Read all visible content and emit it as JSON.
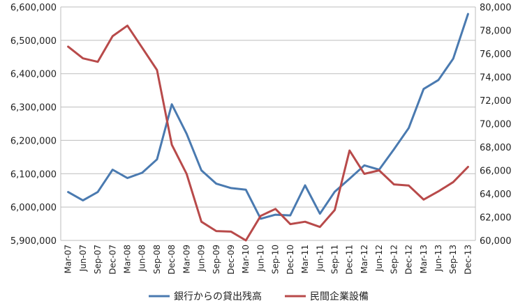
{
  "chart_data": {
    "type": "line",
    "title": "",
    "xlabel": "",
    "ylabel": "",
    "y2label": "",
    "grid": "horizontal",
    "legend_position": "bottom",
    "categories": [
      "Mar-07",
      "Jun-07",
      "Sep-07",
      "Dec-07",
      "Mar-08",
      "Jun-08",
      "Sep-08",
      "Dec-08",
      "Mar-09",
      "Jun-09",
      "Sep-09",
      "Dec-09",
      "Mar-10",
      "Jun-10",
      "Sep-10",
      "Dec-10",
      "Mar-11",
      "Jun-11",
      "Sep-11",
      "Dec-11",
      "Mar-12",
      "Jun-12",
      "Sep-12",
      "Dec-12",
      "Mar-13",
      "Jun-13",
      "Sep-13",
      "Dec-13"
    ],
    "y_left": {
      "range": [
        5900000,
        6600000
      ],
      "ticks": [
        5900000,
        6000000,
        6100000,
        6200000,
        6300000,
        6400000,
        6500000,
        6600000
      ],
      "tick_labels": [
        "5,900,000",
        "6,000,000",
        "6,100,000",
        "6,200,000",
        "6,300,000",
        "6,400,000",
        "6,500,000",
        "6,600,000"
      ]
    },
    "y_right": {
      "range": [
        60000,
        80000
      ],
      "ticks": [
        60000,
        62000,
        64000,
        66000,
        68000,
        70000,
        72000,
        74000,
        76000,
        78000,
        80000
      ],
      "tick_labels": [
        "60,000",
        "62,000",
        "64,000",
        "66,000",
        "68,000",
        "70,000",
        "72,000",
        "74,000",
        "76,000",
        "78,000",
        "80,000"
      ]
    },
    "series": [
      {
        "name": "銀行からの貸出残高",
        "axis": "left",
        "color": "#4a7ab0",
        "values": [
          6045000,
          6020000,
          6045000,
          6112000,
          6087000,
          6103000,
          6143000,
          6308000,
          6220000,
          6110000,
          6070000,
          6057000,
          6052000,
          5965000,
          5977000,
          5975000,
          6065000,
          5980000,
          6046000,
          6085000,
          6125000,
          6112000,
          6173000,
          6237000,
          6354000,
          6381000,
          6445000,
          6579000
        ]
      },
      {
        "name": "民間企業設備",
        "axis": "right",
        "color": "#b84a4a",
        "values": [
          76600,
          75600,
          75300,
          77500,
          78400,
          76500,
          74600,
          68200,
          65700,
          61600,
          60800,
          60750,
          60000,
          62100,
          62700,
          61400,
          61600,
          61150,
          62600,
          67700,
          65700,
          66000,
          64800,
          64700,
          63500,
          64200,
          65000,
          66300
        ]
      }
    ]
  }
}
